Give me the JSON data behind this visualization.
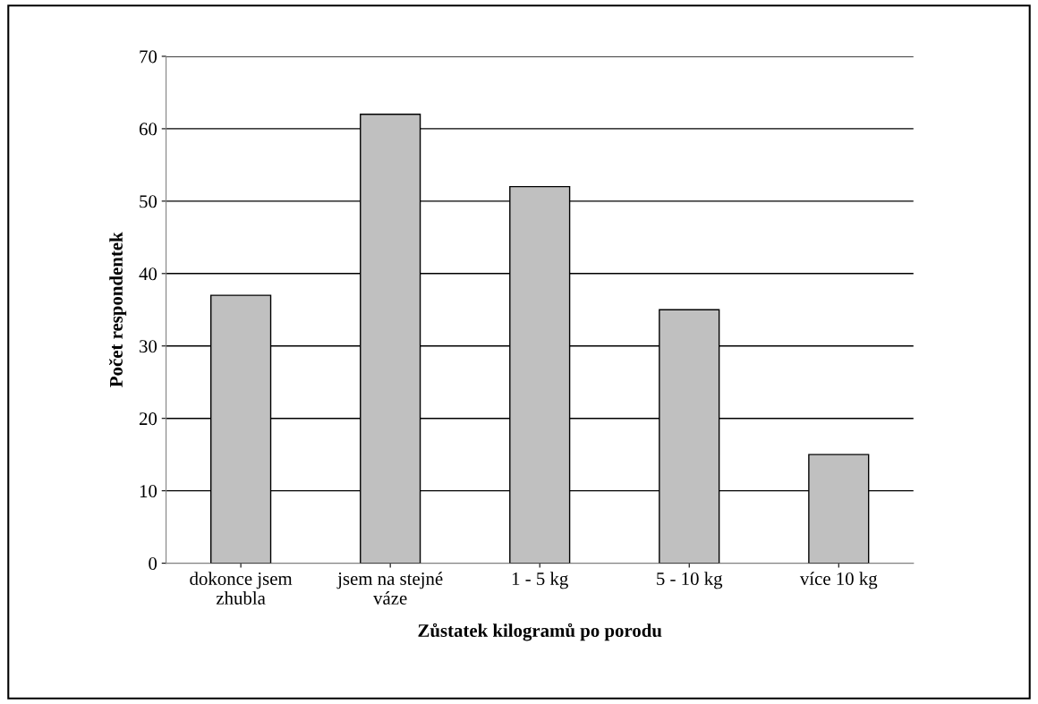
{
  "chart_data": {
    "type": "bar",
    "xlabel": "Zůstatek kilogramů po porodu",
    "ylabel": "Počet respondentek",
    "categories": [
      "dokonce jsem\nzhubla",
      "jsem na stejné\nváze",
      "1 - 5 kg",
      "5 - 10 kg",
      "více 10 kg"
    ],
    "values": [
      37,
      62,
      52,
      35,
      15
    ],
    "color": "#c0c0c0",
    "ylim": [
      0,
      70
    ],
    "yticks": [
      0,
      10,
      20,
      30,
      40,
      50,
      60,
      70
    ],
    "grid": "y"
  }
}
